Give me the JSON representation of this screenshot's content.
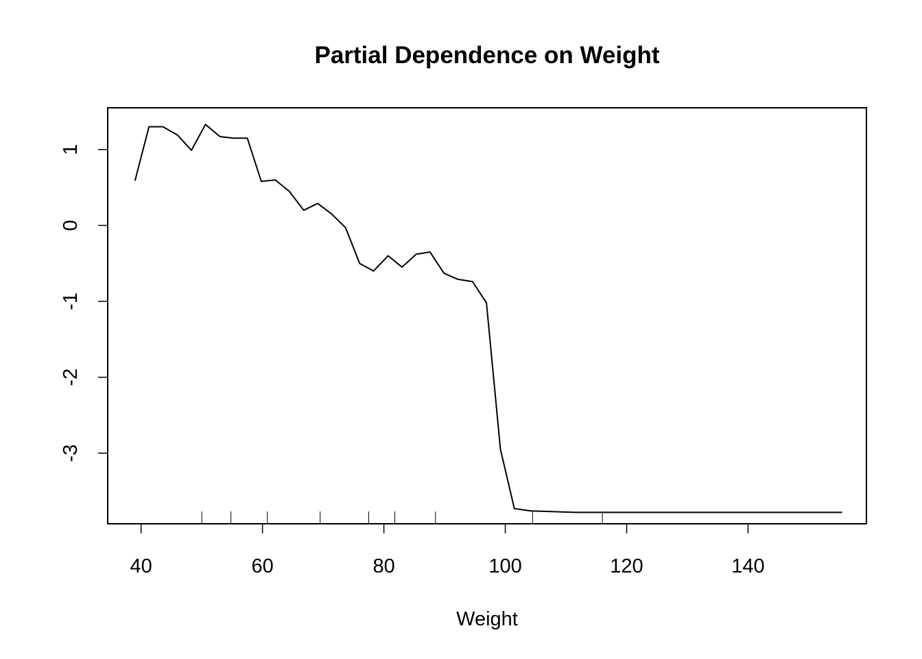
{
  "chart_data": {
    "type": "line",
    "title": "Partial Dependence on Weight",
    "xlabel": "Weight",
    "ylabel": "",
    "xlim": [
      34.5,
      159.5
    ],
    "ylim": [
      -3.93,
      1.55
    ],
    "x_ticks": [
      40,
      60,
      80,
      100,
      120,
      140
    ],
    "x_tick_labels": [
      "40",
      "60",
      "80",
      "100",
      "120",
      "140"
    ],
    "y_ticks": [
      1,
      0,
      -1,
      -2,
      -3
    ],
    "y_tick_labels": [
      "1",
      "0",
      "-1",
      "-2",
      "-3"
    ],
    "grid": false,
    "rug_x": [
      50.0,
      54.8,
      60.8,
      69.5,
      77.5,
      81.8,
      88.5,
      104.5,
      116.0
    ],
    "series": [
      {
        "name": "Partial Dependence",
        "color": "#000000",
        "x": [
          39.0,
          41.3,
          43.6,
          46.0,
          48.3,
          50.6,
          53.0,
          55.2,
          57.5,
          59.8,
          62.1,
          64.4,
          66.8,
          69.1,
          71.4,
          73.7,
          76.0,
          78.3,
          80.7,
          83.0,
          85.3,
          87.6,
          89.9,
          92.2,
          94.6,
          96.9,
          99.2,
          101.5,
          104.2,
          111.5,
          120.0,
          130.0,
          140.0,
          150.0,
          155.5
        ],
        "y": [
          0.59,
          1.3,
          1.3,
          1.19,
          0.99,
          1.33,
          1.17,
          1.15,
          1.15,
          0.58,
          0.6,
          0.45,
          0.2,
          0.29,
          0.15,
          -0.03,
          -0.5,
          -0.6,
          -0.4,
          -0.55,
          -0.38,
          -0.35,
          -0.63,
          -0.71,
          -0.74,
          -1.02,
          -2.95,
          -3.73,
          -3.76,
          -3.78,
          -3.78,
          -3.78,
          -3.78,
          -3.78,
          -3.78
        ]
      }
    ]
  }
}
